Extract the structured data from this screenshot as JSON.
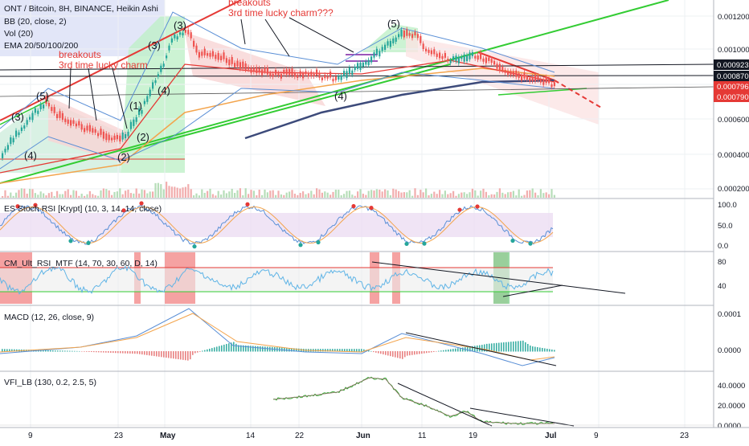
{
  "header": {
    "title": "ONT / Bitcoin, 8H, BINANCE, Heikin Ashi",
    "indicators": [
      "BB (20, close, 2)",
      "Vol (20)",
      "EMA 20/50/100/200"
    ]
  },
  "annotations": {
    "note1_line1": "breakouts",
    "note1_line2": "3rd time lucky charm",
    "note2_line1": "breakouts",
    "note2_line2": "3rd time lucky charm???",
    "waves": [
      "(3)",
      "(5)",
      "(4)",
      "(2)",
      "(1)",
      "(4)",
      "(3)",
      "(3)",
      "(5)",
      "(4)",
      "(2)"
    ]
  },
  "price_labels": {
    "tag1": "0.0009236",
    "tag2": "0.0008701",
    "tag3": "0.0007962",
    "tag4": "0.0007909"
  },
  "axis": {
    "price_ticks": [
      "0.0012000",
      "0.0010000",
      "0.0008000",
      "0.0006000",
      "0.0004000",
      "0.0002000"
    ],
    "stoch_ticks": [
      "100.0",
      "50.0",
      "0.0"
    ],
    "rsi_ticks": [
      "80",
      "40"
    ],
    "macd_ticks": [
      "0.0001",
      "0.0000"
    ],
    "vfi_ticks": [
      "40.0000",
      "20.0000",
      "0.0000"
    ],
    "time_ticks": [
      "9",
      "23",
      "May",
      "14",
      "22",
      "Jun",
      "11",
      "19",
      "Jul",
      "9",
      "23"
    ]
  },
  "panes": {
    "stoch_title": "ES Stoch RSI [Krypt] (10, 3, 14, 14, close)",
    "rsi_title": "CM_Ult_RSI_MTF (14, 70, 30, 60, D, 14)",
    "macd_title": "MACD (12, 26, close, 9)",
    "vfi_title": "VFI_LB (130, 0.2, 2.5, 5)"
  },
  "colors": {
    "up": "#26a69a",
    "down": "#ef5350",
    "trend_green": "#33cc33",
    "trend_red": "#e53935",
    "tag_black": "#131722",
    "tag_red": "#e53935"
  },
  "chart_data": [
    {
      "type": "line",
      "pane": "price",
      "title": "ONT / Bitcoin, 8H, BINANCE, Heikin Ashi",
      "x": [
        "9",
        "23",
        "May",
        "14",
        "22",
        "Jun",
        "11",
        "19",
        "Jul"
      ],
      "series": [
        {
          "values": [
            0.00041,
            0.00046,
            0.00104,
            0.00086,
            0.00082,
            0.00088,
            0.00105,
            0.00089,
            0.0008
          ]
        }
      ],
      "ylim": [
        0.00015,
        0.00135
      ],
      "price_tags": [
        0.0009236,
        0.0008701,
        0.0007962,
        0.0007909
      ]
    },
    {
      "type": "line",
      "pane": "stoch_rsi",
      "title": "ES Stoch RSI [Krypt] (10, 3, 14, 14, close)",
      "ylim": [
        0,
        100
      ],
      "bands": [
        20,
        80
      ]
    },
    {
      "type": "line",
      "pane": "rsi",
      "title": "CM_Ult_RSI_MTF (14, 70, 30, 60, D, 14)",
      "ylim": [
        20,
        90
      ],
      "levels": [
        70,
        30
      ]
    },
    {
      "type": "line",
      "pane": "macd",
      "title": "MACD (12, 26, close, 9)",
      "ylim": [
        -4e-05,
        0.00011
      ]
    },
    {
      "type": "line",
      "pane": "vfi",
      "title": "VFI_LB (130, 0.2, 2.5, 5)",
      "ylim": [
        -2,
        52
      ]
    }
  ]
}
